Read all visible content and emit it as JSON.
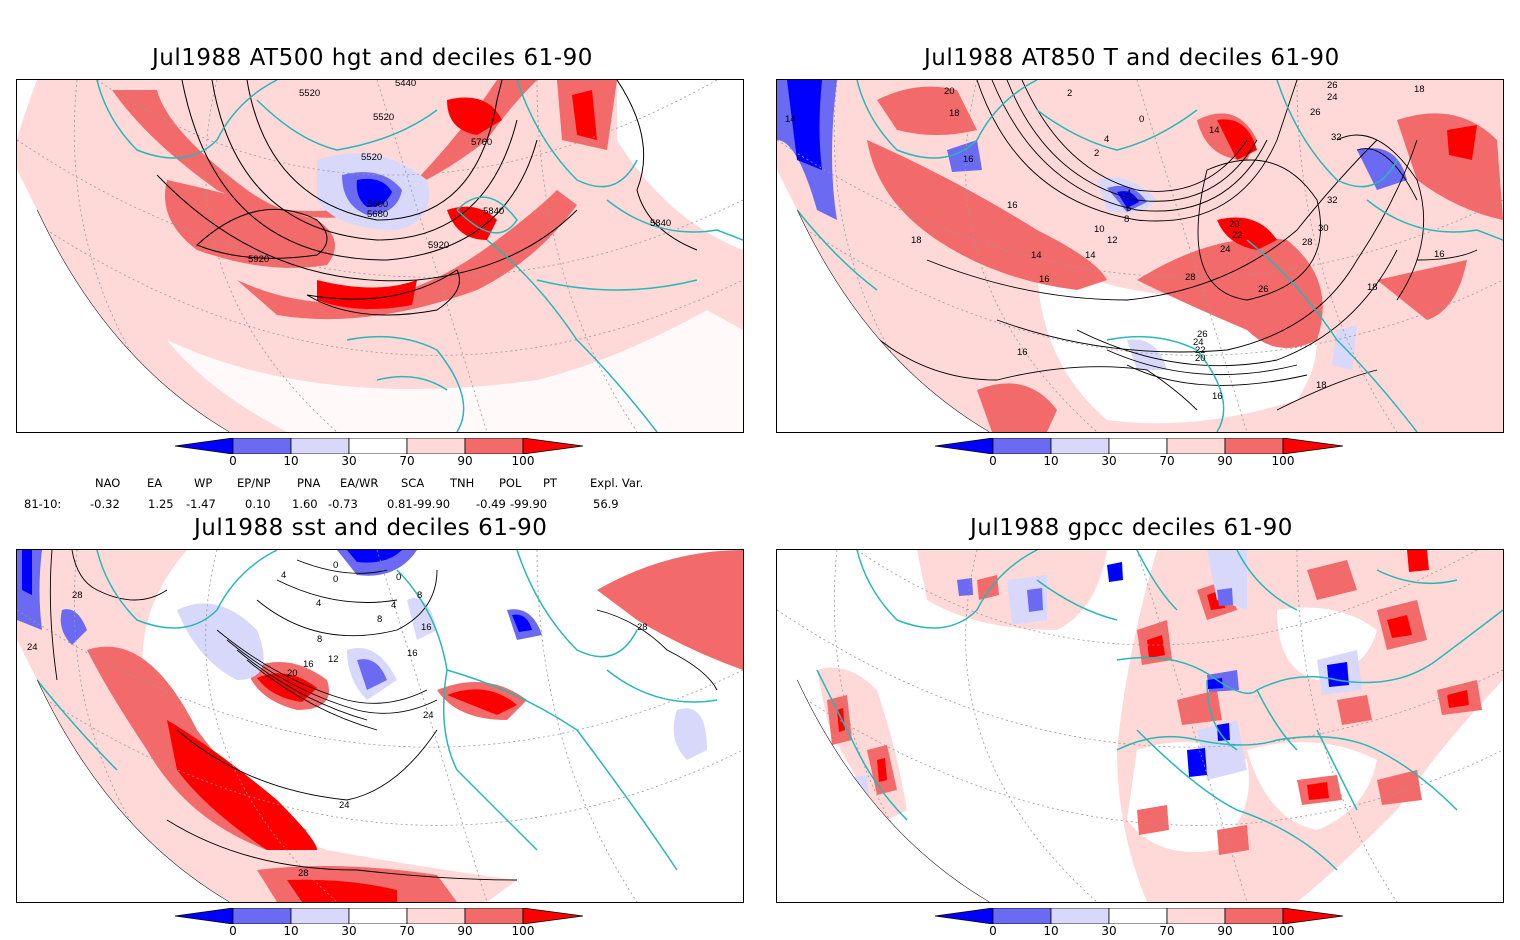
{
  "panels": [
    {
      "title": "Jul1988 AT500 hgt and deciles 61-90",
      "contour_labels": [
        "5440",
        "5520",
        "5520",
        "5520",
        "5600",
        "5680",
        "5760",
        "5840",
        "5840",
        "5920",
        "5920"
      ]
    },
    {
      "title": "Jul1988 AT850 T and deciles 61-90",
      "contour_labels": [
        "14",
        "20",
        "18",
        "2",
        "0",
        "4",
        "2",
        "16",
        "16",
        "14",
        "14",
        "18",
        "16",
        "12",
        "10",
        "8",
        "6",
        "4",
        "20",
        "22",
        "24",
        "28",
        "26",
        "26",
        "24",
        "22",
        "20",
        "16",
        "18",
        "16",
        "26",
        "24",
        "32",
        "32",
        "30",
        "28",
        "16",
        "18",
        "18",
        "14",
        "26"
      ]
    },
    {
      "title": "Jul1988 sst and deciles 61-90",
      "contour_labels": [
        "28",
        "24",
        "4",
        "0",
        "0",
        "4",
        "0",
        "4",
        "8",
        "8",
        "8",
        "16",
        "16",
        "12",
        "20",
        "16",
        "24",
        "24",
        "28",
        "28"
      ]
    },
    {
      "title": "Jul1988 gpcc deciles 61-90",
      "contour_labels": []
    }
  ],
  "colorbar": {
    "ticks": [
      "0",
      "10",
      "30",
      "70",
      "90",
      "100"
    ],
    "colors": [
      "#0000ff",
      "#6a6af2",
      "#d8d8fa",
      "#ffffff",
      "#ffd8d8",
      "#f26a6a",
      "#ff0000"
    ]
  },
  "indices": {
    "headers": [
      "NAO",
      "EA",
      "WP",
      "EP/NP",
      "PNA",
      "EA/WR",
      "SCA",
      "TNH",
      "POL",
      "PT",
      "Expl. Var."
    ],
    "row_label": "81-10:",
    "values": [
      "-0.32",
      "1.25",
      "-1.47",
      "0.10",
      "1.60",
      "-0.73",
      "0.81",
      "-99.90",
      "-0.49",
      "-99.90",
      "56.9"
    ]
  },
  "colors": {
    "coast": "#2ab7b7",
    "grid": "#9a9a9a",
    "contour": "#000000"
  }
}
